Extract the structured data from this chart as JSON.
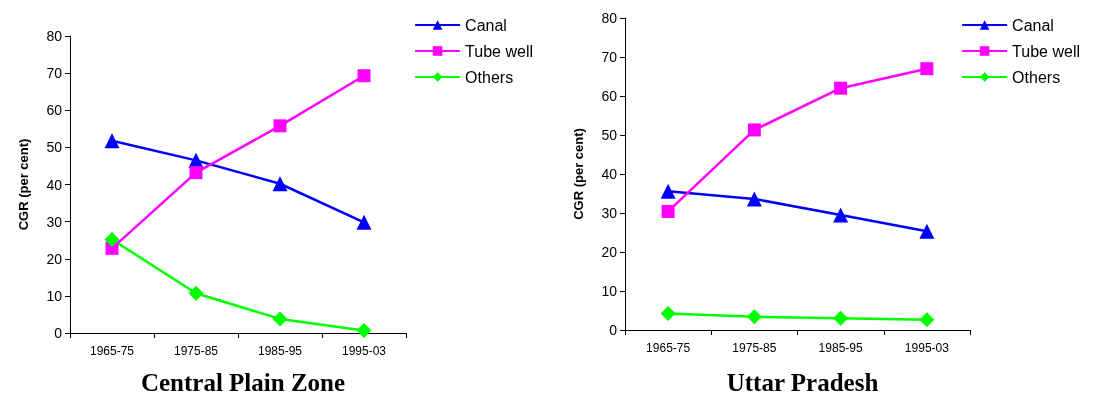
{
  "chart_data": [
    {
      "type": "line",
      "title": "Central Plain Zone",
      "ylabel": "CGR (per cent)",
      "categories": [
        "1965-75",
        "1975-85",
        "1985-95",
        "1995-03"
      ],
      "series": [
        {
          "name": "Canal",
          "color": "#0000ff",
          "marker": "triangle",
          "values": [
            51.8,
            46.5,
            40.2,
            29.8
          ]
        },
        {
          "name": "Tube well",
          "color": "#ff00ff",
          "marker": "square",
          "values": [
            22.8,
            43.2,
            55.8,
            69.3
          ]
        },
        {
          "name": "Others",
          "color": "#00ff00",
          "marker": "diamond",
          "values": [
            25.2,
            10.7,
            3.8,
            0.7
          ]
        }
      ],
      "ylim": [
        0,
        80
      ],
      "yticks": [
        0,
        10,
        20,
        30,
        40,
        50,
        60,
        70,
        80
      ],
      "grid": false,
      "legend": "top right"
    },
    {
      "type": "line",
      "title": "Uttar Pradesh",
      "ylabel": "CGR (per cent)",
      "categories": [
        "1965-75",
        "1975-85",
        "1985-95",
        "1995-03"
      ],
      "series": [
        {
          "name": "Canal",
          "color": "#0000ff",
          "marker": "triangle",
          "values": [
            35.6,
            33.6,
            29.5,
            25.3
          ]
        },
        {
          "name": "Tube well",
          "color": "#ff00ff",
          "marker": "square",
          "values": [
            30.4,
            51.3,
            62.0,
            67.0
          ]
        },
        {
          "name": "Others",
          "color": "#00ff00",
          "marker": "diamond",
          "values": [
            4.2,
            3.4,
            3.0,
            2.6
          ]
        }
      ],
      "ylim": [
        0,
        80
      ],
      "yticks": [
        0,
        10,
        20,
        30,
        40,
        50,
        60,
        70,
        80
      ],
      "grid": false,
      "legend": "top right"
    }
  ]
}
